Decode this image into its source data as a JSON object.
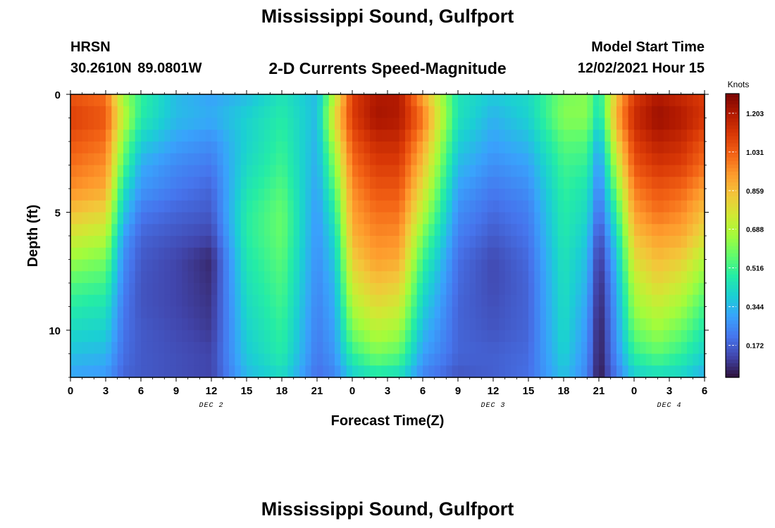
{
  "header": {
    "title": "Mississippi Sound, Gulfport",
    "station_id": "HRSN",
    "station_coords": "30.2610N  89.0801W",
    "subtitle": "2-D Currents Speed-Magnitude",
    "model_start_label": "Model Start Time",
    "model_start_value": "12/02/2021 Hour 15"
  },
  "footer": {
    "title": "Mississippi Sound, Gulfport"
  },
  "chart_data": {
    "type": "heatmap",
    "xlabel": "Forecast Time(Z)",
    "ylabel": "Depth (ft)",
    "colorbar_label": "Knots",
    "x_ticks": [
      "0",
      "3",
      "6",
      "9",
      "12",
      "15",
      "18",
      "21",
      "0",
      "3",
      "6",
      "9",
      "12",
      "15",
      "18",
      "21",
      "0",
      "3",
      "6"
    ],
    "x_range_hours": [
      0,
      54
    ],
    "y_ticks": [
      0,
      5,
      10
    ],
    "ylim": [
      0,
      12
    ],
    "day_labels": [
      {
        "label": "DEC 2",
        "hour": 12
      },
      {
        "label": "DEC 3",
        "hour": 36
      },
      {
        "label": "DEC 4",
        "hour": 51
      }
    ],
    "colorbar_ticks": [
      "1.203",
      "1.031",
      "0.859",
      "0.688",
      "0.516",
      "0.344",
      "0.172"
    ],
    "colorbar_values": [
      1.203,
      1.031,
      0.859,
      0.688,
      0.516,
      0.344,
      0.172
    ],
    "colorbar_range": [
      0.03,
      1.29
    ],
    "colormap": [
      "#30123b",
      "#4145ab",
      "#4675ed",
      "#39a2fc",
      "#1bcfd4",
      "#24eca6",
      "#61fc6c",
      "#a4fc3b",
      "#d1e834",
      "#f3c63a",
      "#fe9b2d",
      "#f36315",
      "#d93806",
      "#b11901",
      "#7a0403"
    ],
    "speed_grid_knots": {
      "depths_ft": [
        0,
        1,
        2,
        3,
        4,
        5,
        6,
        7,
        8,
        9,
        10,
        11,
        12
      ],
      "hours": [
        0,
        3,
        4.5,
        6,
        9,
        12,
        15,
        18,
        21,
        22.5,
        24,
        26,
        28,
        30,
        33,
        36,
        39,
        42,
        44,
        45,
        46.5,
        48,
        50,
        52,
        54
      ],
      "rows": [
        [
          1.05,
          1.0,
          0.65,
          0.5,
          0.35,
          0.3,
          0.35,
          0.45,
          0.35,
          0.7,
          1.1,
          1.2,
          1.2,
          0.9,
          0.45,
          0.38,
          0.42,
          0.6,
          0.62,
          0.45,
          0.85,
          1.1,
          1.2,
          1.15,
          1.1
        ],
        [
          1.1,
          1.05,
          0.72,
          0.48,
          0.35,
          0.32,
          0.4,
          0.48,
          0.35,
          0.8,
          1.1,
          1.22,
          1.2,
          1.0,
          0.45,
          0.33,
          0.4,
          0.62,
          0.62,
          0.42,
          0.9,
          1.15,
          1.24,
          1.2,
          1.12
        ],
        [
          1.05,
          1.0,
          0.62,
          0.4,
          0.3,
          0.26,
          0.4,
          0.5,
          0.33,
          0.7,
          1.05,
          1.15,
          1.15,
          0.92,
          0.4,
          0.3,
          0.35,
          0.56,
          0.55,
          0.32,
          0.8,
          1.1,
          1.18,
          1.15,
          1.05
        ],
        [
          1.0,
          0.95,
          0.55,
          0.32,
          0.25,
          0.22,
          0.42,
          0.52,
          0.32,
          0.62,
          1.0,
          1.1,
          1.1,
          0.85,
          0.35,
          0.26,
          0.3,
          0.52,
          0.5,
          0.26,
          0.7,
          1.05,
          1.12,
          1.1,
          1.0
        ],
        [
          0.95,
          0.9,
          0.45,
          0.28,
          0.22,
          0.18,
          0.45,
          0.55,
          0.3,
          0.55,
          0.95,
          1.05,
          1.05,
          0.78,
          0.3,
          0.22,
          0.26,
          0.5,
          0.45,
          0.22,
          0.6,
          0.98,
          1.05,
          1.02,
          0.92
        ],
        [
          0.85,
          0.8,
          0.38,
          0.22,
          0.18,
          0.16,
          0.48,
          0.58,
          0.28,
          0.48,
          0.92,
          1.0,
          1.0,
          0.7,
          0.26,
          0.19,
          0.23,
          0.48,
          0.42,
          0.18,
          0.5,
          0.92,
          1.0,
          0.96,
          0.85
        ],
        [
          0.75,
          0.7,
          0.3,
          0.18,
          0.15,
          0.12,
          0.48,
          0.58,
          0.27,
          0.42,
          0.88,
          0.96,
          0.95,
          0.6,
          0.23,
          0.16,
          0.21,
          0.47,
          0.38,
          0.12,
          0.42,
          0.85,
          0.92,
          0.9,
          0.78
        ],
        [
          0.65,
          0.6,
          0.26,
          0.16,
          0.12,
          0.07,
          0.46,
          0.56,
          0.26,
          0.38,
          0.82,
          0.92,
          0.9,
          0.52,
          0.2,
          0.13,
          0.19,
          0.45,
          0.35,
          0.08,
          0.36,
          0.78,
          0.86,
          0.82,
          0.68
        ],
        [
          0.55,
          0.52,
          0.24,
          0.15,
          0.12,
          0.08,
          0.44,
          0.54,
          0.25,
          0.34,
          0.75,
          0.85,
          0.82,
          0.45,
          0.19,
          0.13,
          0.18,
          0.44,
          0.33,
          0.06,
          0.32,
          0.7,
          0.8,
          0.74,
          0.6
        ],
        [
          0.48,
          0.45,
          0.22,
          0.15,
          0.12,
          0.09,
          0.42,
          0.52,
          0.24,
          0.32,
          0.68,
          0.78,
          0.74,
          0.4,
          0.18,
          0.14,
          0.18,
          0.43,
          0.3,
          0.05,
          0.3,
          0.65,
          0.72,
          0.66,
          0.52
        ],
        [
          0.42,
          0.4,
          0.21,
          0.16,
          0.13,
          0.1,
          0.4,
          0.5,
          0.23,
          0.3,
          0.6,
          0.7,
          0.66,
          0.35,
          0.18,
          0.15,
          0.18,
          0.42,
          0.28,
          0.04,
          0.28,
          0.58,
          0.65,
          0.58,
          0.46
        ],
        [
          0.36,
          0.34,
          0.2,
          0.16,
          0.14,
          0.12,
          0.38,
          0.48,
          0.22,
          0.28,
          0.5,
          0.6,
          0.56,
          0.3,
          0.18,
          0.17,
          0.19,
          0.4,
          0.26,
          0.04,
          0.26,
          0.5,
          0.56,
          0.5,
          0.4
        ],
        [
          0.3,
          0.28,
          0.18,
          0.16,
          0.14,
          0.12,
          0.34,
          0.42,
          0.2,
          0.24,
          0.38,
          0.45,
          0.42,
          0.24,
          0.15,
          0.17,
          0.2,
          0.36,
          0.24,
          0.03,
          0.22,
          0.38,
          0.42,
          0.4,
          0.32
        ]
      ]
    }
  }
}
